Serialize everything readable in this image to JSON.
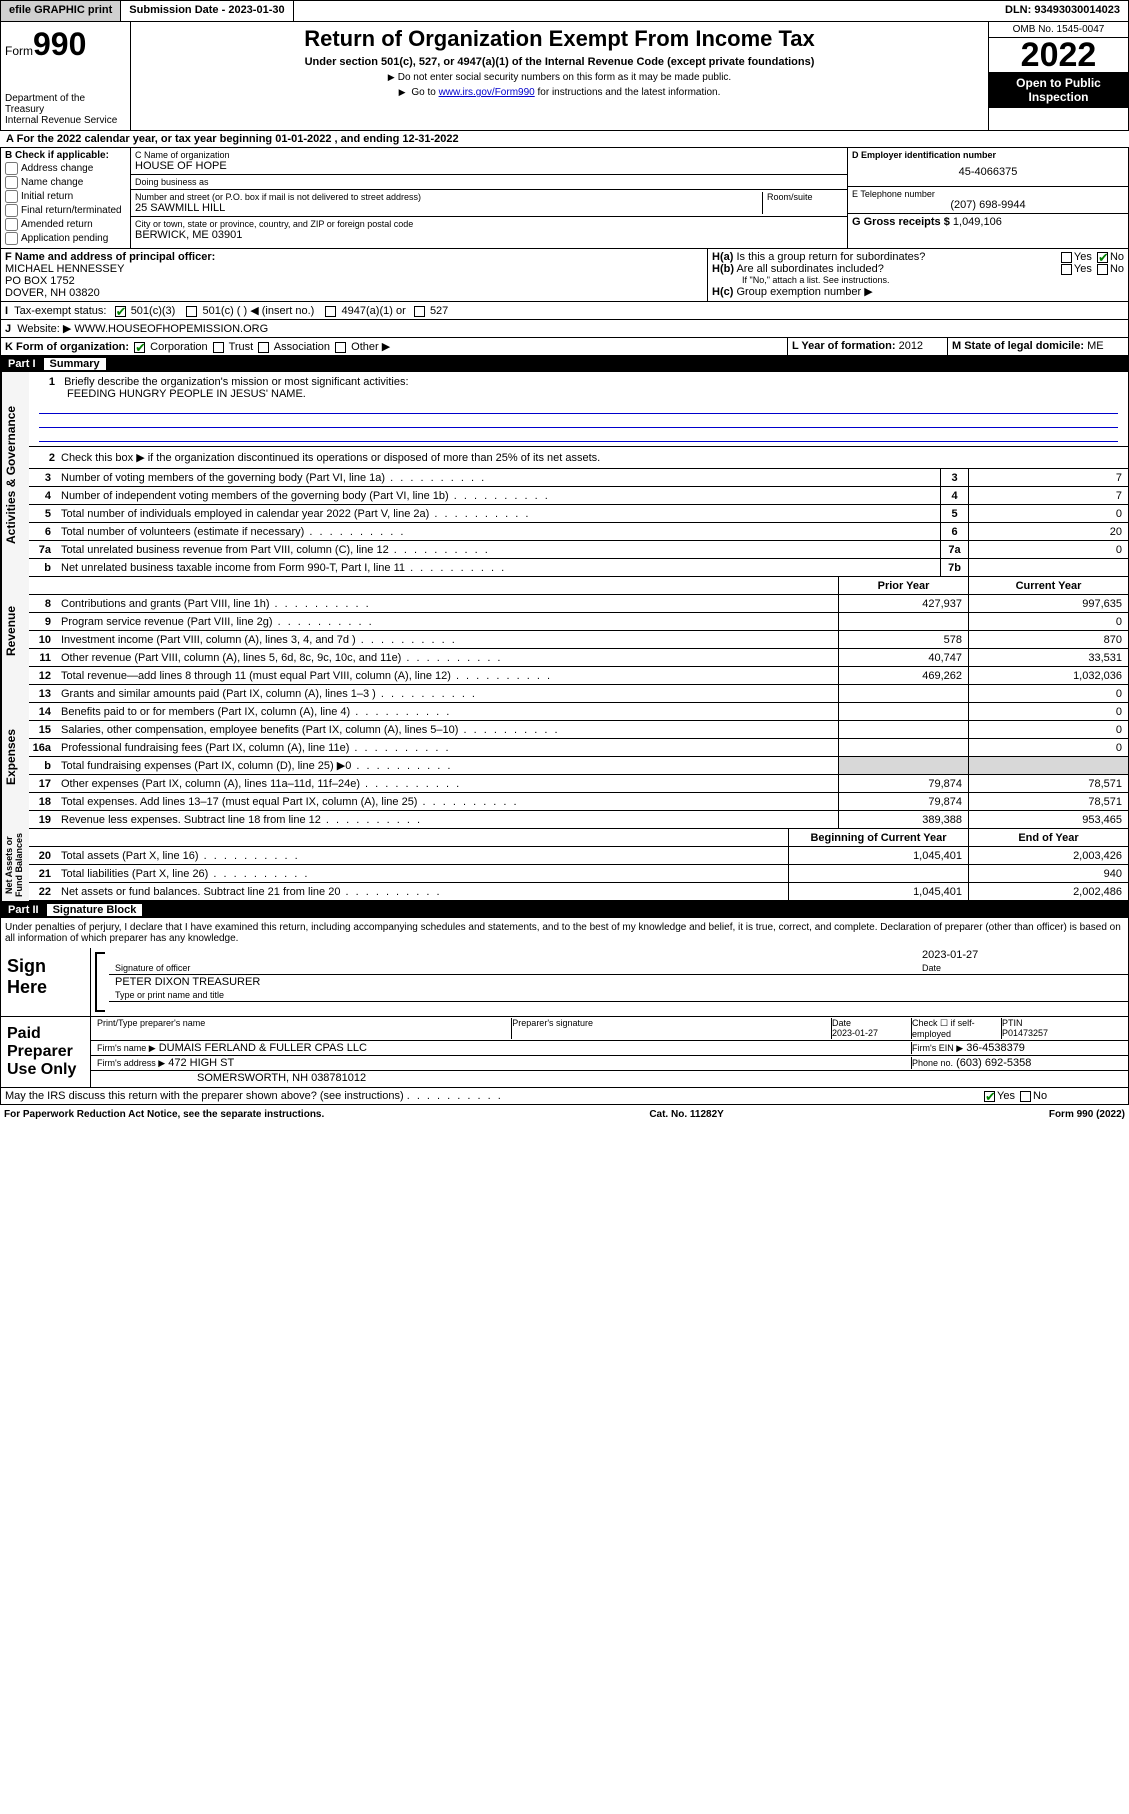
{
  "topbar": {
    "efile": "efile GRAPHIC print",
    "subdate_label": "Submission Date - ",
    "subdate": "2023-01-30",
    "dln_label": "DLN: ",
    "dln": "93493030014023"
  },
  "header": {
    "form_prefix": "Form",
    "form_no": "990",
    "title": "Return of Organization Exempt From Income Tax",
    "subtitle": "Under section 501(c), 527, or 4947(a)(1) of the Internal Revenue Code (except private foundations)",
    "note1": "Do not enter social security numbers on this form as it may be made public.",
    "note2_pre": "Go to ",
    "note2_link": "www.irs.gov/Form990",
    "note2_post": " for instructions and the latest information.",
    "dept": "Department of the Treasury\nInternal Revenue Service",
    "omb": "OMB No. 1545-0047",
    "year": "2022",
    "inspect": "Open to Public Inspection"
  },
  "lineA": "For the 2022 calendar year, or tax year beginning 01-01-2022   , and ending 12-31-2022",
  "boxB": {
    "label": "B Check if applicable:",
    "opts": [
      "Address change",
      "Name change",
      "Initial return",
      "Final return/terminated",
      "Amended return",
      "Application pending"
    ]
  },
  "boxC": {
    "name_label": "C Name of organization",
    "name": "HOUSE OF HOPE",
    "dba_label": "Doing business as",
    "dba": "",
    "street_label": "Number and street (or P.O. box if mail is not delivered to street address)",
    "room_label": "Room/suite",
    "street": "25 SAWMILL HILL",
    "city_label": "City or town, state or province, country, and ZIP or foreign postal code",
    "city": "BERWICK, ME  03901"
  },
  "boxD": {
    "label": "D Employer identification number",
    "val": "45-4066375"
  },
  "boxE": {
    "label": "E Telephone number",
    "val": "(207) 698-9944"
  },
  "boxG": {
    "label": "G Gross receipts $",
    "val": "1,049,106"
  },
  "boxF": {
    "label": "F Name and address of principal officer:",
    "lines": [
      "MICHAEL HENNESSEY",
      "PO BOX 1752",
      "DOVER, NH  03820"
    ]
  },
  "boxH": {
    "a": "Is this a group return for subordinates?",
    "b": "Are all subordinates included?",
    "b_note": "If \"No,\" attach a list. See instructions.",
    "c": "Group exemption number"
  },
  "boxI": {
    "label": "Tax-exempt status:",
    "opts": [
      "501(c)(3)",
      "501(c) (  ) ◀ (insert no.)",
      "4947(a)(1) or",
      "527"
    ]
  },
  "boxJ": {
    "label": "Website:",
    "val": "WWW.HOUSEOFHOPEMISSION.ORG"
  },
  "boxK": {
    "label": "K Form of organization:",
    "opts": [
      "Corporation",
      "Trust",
      "Association",
      "Other"
    ]
  },
  "boxL": {
    "label": "L Year of formation:",
    "val": "2012"
  },
  "boxM": {
    "label": "M State of legal domicile:",
    "val": "ME"
  },
  "part1": {
    "no": "Part I",
    "title": "Summary"
  },
  "summary": {
    "q1": "Briefly describe the organization's mission or most significant activities:",
    "q1_ans": "FEEDING HUNGRY PEOPLE IN JESUS' NAME.",
    "q2": "Check this box ▶ if the organization discontinued its operations or disposed of more than 25% of its net assets.",
    "lines_top": [
      {
        "n": "3",
        "d": "Number of voting members of the governing body (Part VI, line 1a)",
        "box": "3",
        "v": "7"
      },
      {
        "n": "4",
        "d": "Number of independent voting members of the governing body (Part VI, line 1b)",
        "box": "4",
        "v": "7"
      },
      {
        "n": "5",
        "d": "Total number of individuals employed in calendar year 2022 (Part V, line 2a)",
        "box": "5",
        "v": "0"
      },
      {
        "n": "6",
        "d": "Total number of volunteers (estimate if necessary)",
        "box": "6",
        "v": "20"
      },
      {
        "n": "7a",
        "d": "Total unrelated business revenue from Part VIII, column (C), line 12",
        "box": "7a",
        "v": "0"
      },
      {
        "n": "b",
        "d": "Net unrelated business taxable income from Form 990-T, Part I, line 11",
        "box": "7b",
        "v": ""
      }
    ],
    "col_prior": "Prior Year",
    "col_current": "Current Year",
    "revenue": [
      {
        "n": "8",
        "d": "Contributions and grants (Part VIII, line 1h)",
        "p": "427,937",
        "c": "997,635"
      },
      {
        "n": "9",
        "d": "Program service revenue (Part VIII, line 2g)",
        "p": "",
        "c": "0"
      },
      {
        "n": "10",
        "d": "Investment income (Part VIII, column (A), lines 3, 4, and 7d )",
        "p": "578",
        "c": "870"
      },
      {
        "n": "11",
        "d": "Other revenue (Part VIII, column (A), lines 5, 6d, 8c, 9c, 10c, and 11e)",
        "p": "40,747",
        "c": "33,531"
      },
      {
        "n": "12",
        "d": "Total revenue—add lines 8 through 11 (must equal Part VIII, column (A), line 12)",
        "p": "469,262",
        "c": "1,032,036"
      }
    ],
    "expenses": [
      {
        "n": "13",
        "d": "Grants and similar amounts paid (Part IX, column (A), lines 1–3 )",
        "p": "",
        "c": "0"
      },
      {
        "n": "14",
        "d": "Benefits paid to or for members (Part IX, column (A), line 4)",
        "p": "",
        "c": "0"
      },
      {
        "n": "15",
        "d": "Salaries, other compensation, employee benefits (Part IX, column (A), lines 5–10)",
        "p": "",
        "c": "0"
      },
      {
        "n": "16a",
        "d": "Professional fundraising fees (Part IX, column (A), line 11e)",
        "p": "",
        "c": "0"
      },
      {
        "n": "b",
        "d": "Total fundraising expenses (Part IX, column (D), line 25) ▶0",
        "p": "shade",
        "c": "shade"
      },
      {
        "n": "17",
        "d": "Other expenses (Part IX, column (A), lines 11a–11d, 11f–24e)",
        "p": "79,874",
        "c": "78,571"
      },
      {
        "n": "18",
        "d": "Total expenses. Add lines 13–17 (must equal Part IX, column (A), line 25)",
        "p": "79,874",
        "c": "78,571"
      },
      {
        "n": "19",
        "d": "Revenue less expenses. Subtract line 18 from line 12",
        "p": "389,388",
        "c": "953,465"
      }
    ],
    "col_begin": "Beginning of Current Year",
    "col_end": "End of Year",
    "netassets": [
      {
        "n": "20",
        "d": "Total assets (Part X, line 16)",
        "p": "1,045,401",
        "c": "2,003,426"
      },
      {
        "n": "21",
        "d": "Total liabilities (Part X, line 26)",
        "p": "",
        "c": "940"
      },
      {
        "n": "22",
        "d": "Net assets or fund balances. Subtract line 21 from line 20",
        "p": "1,045,401",
        "c": "2,002,486"
      }
    ],
    "vlabels": [
      "Activities & Governance",
      "Revenue",
      "Expenses",
      "Net Assets or\nFund Balances"
    ]
  },
  "part2": {
    "no": "Part II",
    "title": "Signature Block"
  },
  "penalties": "Under penalties of perjury, I declare that I have examined this return, including accompanying schedules and statements, and to the best of my knowledge and belief, it is true, correct, and complete. Declaration of preparer (other than officer) is based on all information of which preparer has any knowledge.",
  "sign": {
    "here": "Sign Here",
    "sig_officer": "Signature of officer",
    "date": "Date",
    "date_val": "2023-01-27",
    "name": "PETER DIXON  TREASURER",
    "name_label": "Type or print name and title"
  },
  "preparer": {
    "label": "Paid Preparer Use Only",
    "cols": [
      "Print/Type preparer's name",
      "Preparer's signature",
      "Date",
      "Check ☐ if self-employed",
      "PTIN"
    ],
    "date": "2023-01-27",
    "ptin": "P01473257",
    "firm_name_label": "Firm's name ▶",
    "firm_name": "DUMAIS FERLAND & FULLER CPAS LLC",
    "firm_ein_label": "Firm's EIN ▶",
    "firm_ein": "36-4538379",
    "firm_addr_label": "Firm's address ▶",
    "firm_addr": "472 HIGH ST",
    "firm_city": "SOMERSWORTH, NH  038781012",
    "phone_label": "Phone no.",
    "phone": "(603) 692-5358"
  },
  "discuss": "May the IRS discuss this return with the preparer shown above? (see instructions)",
  "footer": {
    "left": "For Paperwork Reduction Act Notice, see the separate instructions.",
    "mid": "Cat. No. 11282Y",
    "right": "Form 990 (2022)"
  }
}
